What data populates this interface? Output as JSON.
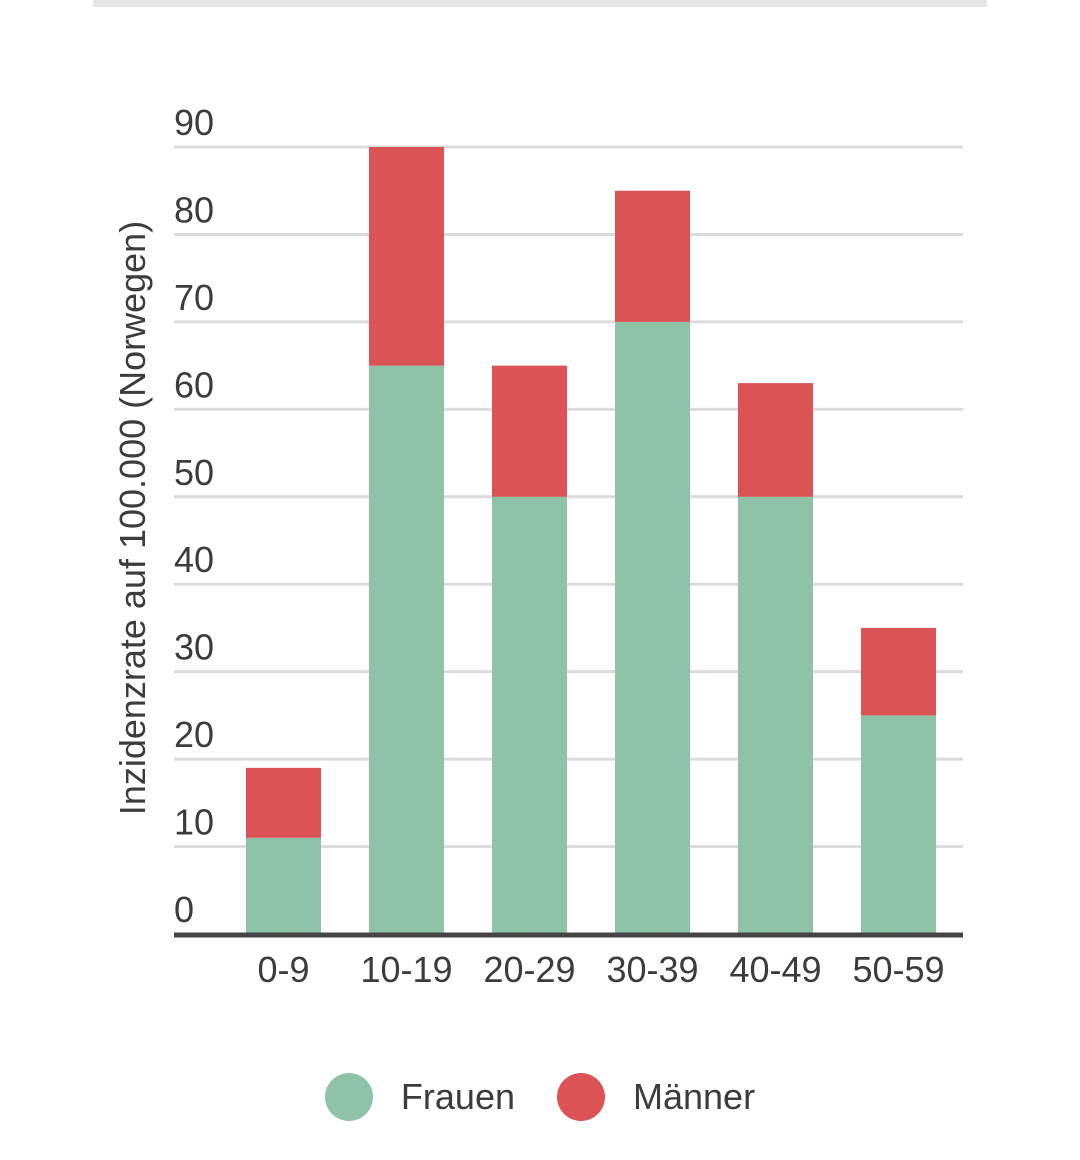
{
  "colors": {
    "frauen": "#8fc3a7",
    "maenner": "#dc5356",
    "grid": "#dcdcdc",
    "axis": "#444444",
    "text": "#3c3c3c"
  },
  "chart_data": {
    "type": "bar",
    "stacked": true,
    "title": "",
    "xlabel": "",
    "ylabel": "Inzidenzrate auf 100.000 (Norwegen)",
    "categories": [
      "0-9",
      "10-19",
      "20-29",
      "30-39",
      "40-49",
      "50-59"
    ],
    "series": [
      {
        "name": "Frauen",
        "values": [
          11,
          65,
          50,
          70,
          50,
          25
        ]
      },
      {
        "name": "Männer",
        "values": [
          8,
          25,
          15,
          15,
          13,
          10
        ]
      }
    ],
    "ylim": [
      0,
      90
    ],
    "yticks": [
      0,
      10,
      20,
      30,
      40,
      50,
      60,
      70,
      80,
      90
    ],
    "grid": true,
    "legend": "bottom"
  }
}
